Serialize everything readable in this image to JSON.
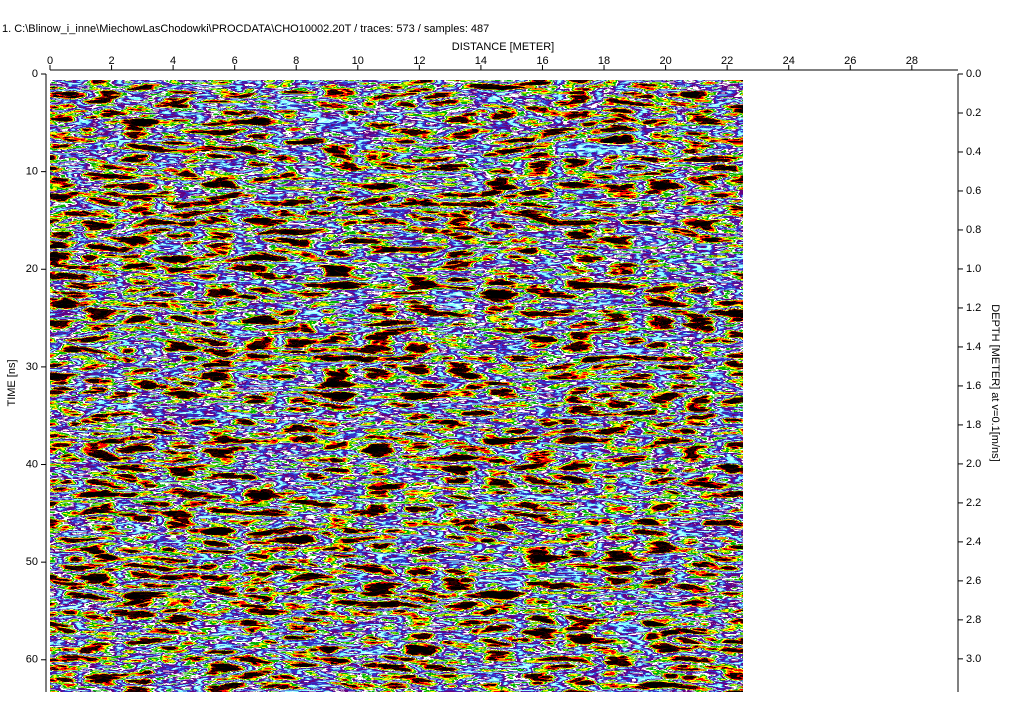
{
  "chart_data": {
    "type": "radargram",
    "title": "1. C:\\Blinow_i_inne\\MiechowLasChodowki\\PROCDATA\\CHO10002.20T / traces: 573 / samples: 487",
    "xlabel": "DISTANCE [METER]",
    "ylabel": "TIME [ns]",
    "y2label": "DEPTH [METER] at v=0.1[m/ns]",
    "xlim": [
      0,
      29.5
    ],
    "xticks": [
      0,
      2,
      4,
      6,
      8,
      10,
      12,
      14,
      16,
      18,
      20,
      22,
      24,
      26,
      28
    ],
    "image_xlim": [
      0,
      22.5
    ],
    "ylim": [
      0,
      63.3
    ],
    "yticks": [
      0,
      10,
      20,
      30,
      40,
      50,
      60
    ],
    "y2lim": [
      0,
      3.17
    ],
    "y2ticks": [
      {
        "value": 0,
        "label": "0.0"
      },
      0.2,
      0.4,
      0.6,
      0.8,
      {
        "value": 1,
        "label": "1.0"
      },
      1.2,
      1.4,
      1.6,
      1.8,
      {
        "value": 2,
        "label": "2.0"
      },
      2.2,
      2.4,
      2.6,
      2.8,
      {
        "value": 3,
        "label": "3.0"
      }
    ]
  }
}
